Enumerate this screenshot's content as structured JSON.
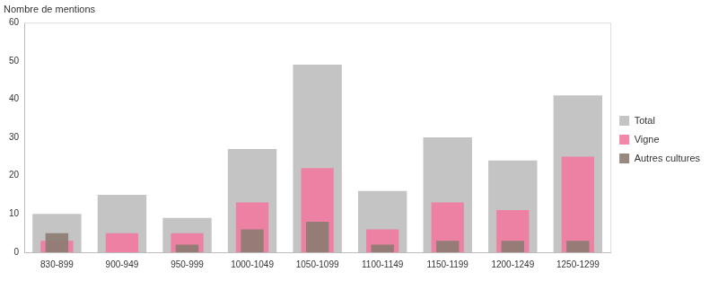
{
  "chart_data": {
    "type": "bar",
    "y_label": "Nombre de mentions",
    "categories": [
      "830-899",
      "900-949",
      "950-999",
      "1000-1049",
      "1050-1099",
      "1100-1149",
      "1150-1199",
      "1200-1249",
      "1250-1299"
    ],
    "series": [
      {
        "name": "Total",
        "color": "#c4c4c4",
        "values": [
          10,
          15,
          9,
          27,
          49,
          16,
          30,
          24,
          41
        ]
      },
      {
        "name": "Vigne",
        "color": "#f27aa0",
        "values": [
          3,
          5,
          5,
          13,
          22,
          6,
          13,
          11,
          25
        ]
      },
      {
        "name": "Autres cultures",
        "color": "#8c7b72",
        "values": [
          5,
          null,
          2,
          6,
          8,
          2,
          3,
          3,
          3
        ]
      }
    ],
    "ylim": [
      0,
      60
    ],
    "yticks": [
      0,
      10,
      20,
      30,
      40,
      50,
      60
    ],
    "grid": false,
    "legend": "right"
  }
}
